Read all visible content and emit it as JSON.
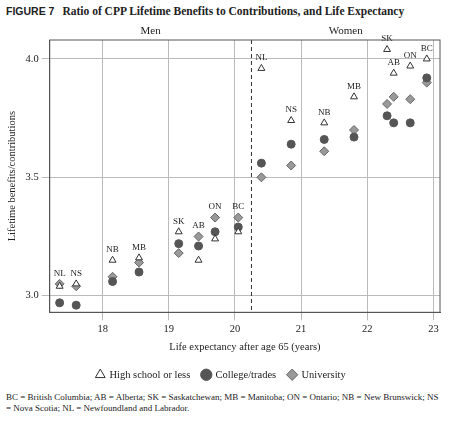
{
  "chart_data": {
    "type": "scatter",
    "figure_label": "FIGURE 7",
    "title": "Ratio of CPP Lifetime Benefits to Contributions, and Life Expectancy",
    "x_label": "Life expectancy after age 65 (years)",
    "y_label": "Lifetime benefits/contributions",
    "panel_labels": [
      "Men",
      "Women"
    ],
    "divider": {
      "x": 20.25,
      "line_style": "dashed"
    },
    "point_labels": [
      "NL",
      "NS",
      "NB",
      "MB",
      "SK",
      "AB",
      "ON",
      "BC",
      "NL",
      "NS",
      "NB",
      "MB",
      "SK",
      "AB",
      "ON",
      "BC"
    ],
    "x": [
      17.35,
      17.6,
      18.15,
      18.55,
      19.15,
      19.45,
      19.7,
      20.05,
      20.4,
      20.85,
      21.35,
      21.8,
      22.3,
      22.4,
      22.65,
      22.9
    ],
    "series": [
      {
        "name": "High school or less",
        "marker": "open_triangle",
        "color": "#333333",
        "values": [
          3.04,
          3.05,
          3.15,
          3.16,
          3.27,
          3.15,
          3.24,
          3.27,
          3.96,
          3.74,
          3.73,
          3.84,
          4.04,
          3.94,
          3.97,
          4.0
        ]
      },
      {
        "name": "College/trades",
        "marker": "circle",
        "color": "#555555",
        "values": [
          2.97,
          2.96,
          3.06,
          3.1,
          3.22,
          3.21,
          3.27,
          3.29,
          3.56,
          3.64,
          3.66,
          3.67,
          3.76,
          3.73,
          3.73,
          3.92
        ]
      },
      {
        "name": "University",
        "marker": "diamond",
        "color": "#999999",
        "values": [
          3.05,
          3.04,
          3.08,
          3.14,
          3.18,
          3.25,
          3.33,
          3.33,
          3.5,
          3.55,
          3.61,
          3.7,
          3.81,
          3.84,
          3.83,
          3.9
        ]
      }
    ],
    "xlim": [
      17.2,
      23.1
    ],
    "xticks": [
      18,
      19,
      20,
      21,
      22,
      23
    ],
    "ylim": [
      2.93,
      4.08
    ],
    "yticks": [
      {
        "value": 3,
        "label": "3.0"
      },
      {
        "value": 3.5,
        "label": "3.5"
      },
      {
        "value": 4,
        "label": "4.0"
      }
    ],
    "grid": true,
    "legend": "bottom",
    "note": "BC = British Columbia; AB = Alberta; SK = Saskatchewan; MB = Manitoba; ON = Ontario; NB = New Brunswick; NS = Nova Scotia; NL = Newfoundland and Labrador."
  }
}
